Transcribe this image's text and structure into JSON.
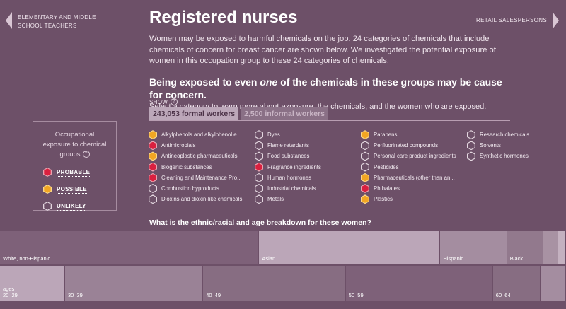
{
  "nav": {
    "prev_label": "ELEMENTARY AND MIDDLE SCHOOL TEACHERS",
    "next_label": "RETAIL SALESPERSONS"
  },
  "header": {
    "title": "Registered nurses",
    "intro": "Women may be exposed to harmful chemicals on the job. 24 categories of chemicals that include chemicals of concern for breast cancer are shown below. We investigated the potential exposure of women in this occupation group to these 24 categories of chemicals.",
    "concern_pre": "Being exposed to even ",
    "concern_em": "one",
    "concern_post": " of the chemicals in these groups may be cause for concern.",
    "select_hint": "Select a category to learn more about exposure, the chemicals, and the women who are exposed."
  },
  "show": {
    "label": "SHOW",
    "help": "?",
    "tabs": [
      {
        "label": "243,053 formal workers",
        "active": true
      },
      {
        "label": "2,500 informal workers",
        "active": false
      }
    ]
  },
  "legend": {
    "title": "Occupational exposure to chemical groups",
    "help": "?",
    "items": [
      {
        "label": "PROBABLE",
        "level": "probable"
      },
      {
        "label": "POSSIBLE",
        "level": "possible"
      },
      {
        "label": "UNLIKELY",
        "level": "unlikely"
      }
    ]
  },
  "colors": {
    "background": "#6d5068",
    "probable": "#d9203f",
    "possible": "#f2a623",
    "unlikely": "#6d5068"
  },
  "chemicals": [
    {
      "label": "Alkylphenols and alkylphenol e...",
      "level": "possible"
    },
    {
      "label": "Antimicrobials",
      "level": "probable"
    },
    {
      "label": "Antineoplastic pharmaceuticals",
      "level": "possible"
    },
    {
      "label": "Biogenic substances",
      "level": "probable"
    },
    {
      "label": "Cleaning and Maintenance Pro...",
      "level": "probable"
    },
    {
      "label": "Combustion byproducts",
      "level": "unlikely"
    },
    {
      "label": "Dioxins and dioxin-like chemicals",
      "level": "unlikely"
    },
    {
      "label": "Dyes",
      "level": "unlikely"
    },
    {
      "label": "Flame retardants",
      "level": "unlikely"
    },
    {
      "label": "Food substances",
      "level": "unlikely"
    },
    {
      "label": "Fragrance ingredients",
      "level": "probable"
    },
    {
      "label": "Human hormones",
      "level": "unlikely"
    },
    {
      "label": "Industrial chemicals",
      "level": "unlikely"
    },
    {
      "label": "Metals",
      "level": "unlikely"
    },
    {
      "label": "Parabens",
      "level": "possible"
    },
    {
      "label": "Perfluorinated compounds",
      "level": "unlikely"
    },
    {
      "label": "Personal care product ingredients",
      "level": "unlikely"
    },
    {
      "label": "Pesticides",
      "level": "unlikely"
    },
    {
      "label": "Pharmaceuticals (other than an...",
      "level": "possible"
    },
    {
      "label": "Phthalates",
      "level": "probable"
    },
    {
      "label": "Plastics",
      "level": "possible"
    },
    {
      "label": "Research chemicals",
      "level": "unlikely"
    },
    {
      "label": "Solvents",
      "level": "unlikely"
    },
    {
      "label": "Synthetic hormones",
      "level": "unlikely"
    }
  ],
  "breakdown": {
    "question": "What is the ethnic/racial and age breakdown for these women?",
    "ethnicity": [
      {
        "label": "White, non-Hispanic",
        "share": 45.8,
        "color": "#7e6179"
      },
      {
        "label": "Asian",
        "share": 32.0,
        "color": "#bba6b8"
      },
      {
        "label": "Hispanic",
        "share": 11.8,
        "color": "#a48da0"
      },
      {
        "label": "Black",
        "share": 6.4,
        "color": "#92798d"
      },
      {
        "label": "",
        "share": 2.6,
        "color": "#a892a3"
      },
      {
        "label": "",
        "share": 1.4,
        "color": "#c4b1c0"
      }
    ],
    "ages_prefix": "ages",
    "ages": [
      {
        "label": "20–29",
        "share": 11.5,
        "color": "#bba6b8"
      },
      {
        "label": "30–39",
        "share": 24.4,
        "color": "#9a8296"
      },
      {
        "label": "40–49",
        "share": 25.2,
        "color": "#876d82"
      },
      {
        "label": "50–59",
        "share": 26.0,
        "color": "#7e6179"
      },
      {
        "label": "60–64",
        "share": 8.4,
        "color": "#876d82"
      },
      {
        "label": "",
        "share": 4.5,
        "color": "#a48da0"
      }
    ]
  }
}
